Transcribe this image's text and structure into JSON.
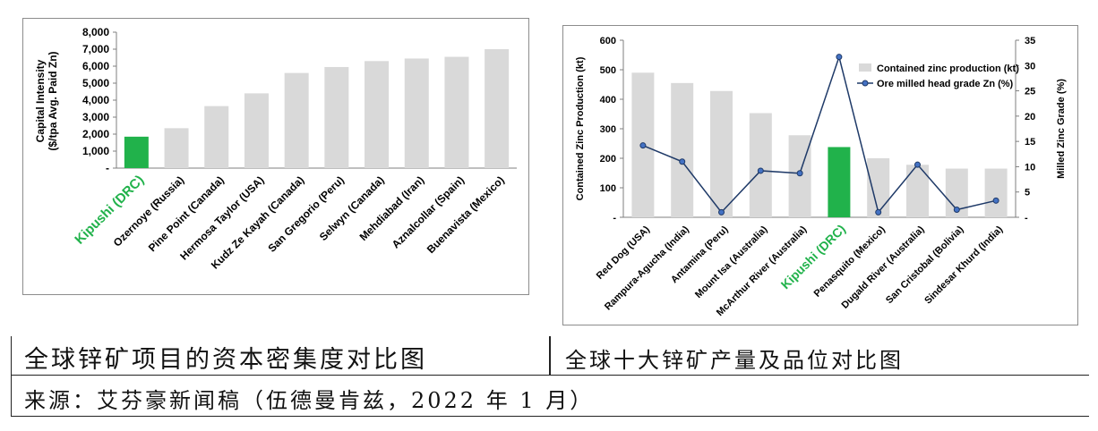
{
  "captions": {
    "left": "全球锌矿项目的资本密集度对比图",
    "right": "全球十大锌矿产量及品位对比图",
    "source": "来源：艾芬豪新闻稿（伍德曼肯兹，2022 年 1 月）"
  },
  "colors": {
    "highlight": "#21b24b",
    "bar": "#d9d9d9",
    "line": "#1f3a68",
    "marker_fill": "#4472c4",
    "highlight_label": "#21b24b"
  },
  "chart_data": [
    {
      "type": "bar",
      "title": "",
      "ylabel": "Capital Intensity\n($/tpa Avg. Paid Zn)",
      "ylim": [
        0,
        8000
      ],
      "yticks": [
        "-",
        "1,000",
        "2,000",
        "3,000",
        "4,000",
        "5,000",
        "6,000",
        "7,000",
        "8,000"
      ],
      "grid": false,
      "categories": [
        "Kipushi (DRC)",
        "Ozernoye (Russia)",
        "Pine Point  (Canada)",
        "Hermosa Taylor (USA)",
        "Kudz Ze Kayah (Canada)",
        "San Gregorio (Peru)",
        "Selwyn (Canada)",
        "Mehdiabad (Iran)",
        "Aznalcollar (Spain)",
        "Buenavista (Mexico)"
      ],
      "values": [
        1850,
        2350,
        3650,
        4400,
        5600,
        5950,
        6300,
        6450,
        6550,
        7000
      ],
      "highlight_index": 0
    },
    {
      "type": "bar",
      "title": "",
      "ylabel": "Contained Zinc Production (kt)",
      "y2label": "Milled Zinc Grade (%)",
      "ylim": [
        0,
        600
      ],
      "y2lim": [
        0,
        35
      ],
      "yticks": [
        "-",
        "100",
        "200",
        "300",
        "400",
        "500",
        "600"
      ],
      "y2ticks": [
        "-",
        "5",
        "10",
        "15",
        "20",
        "25",
        "30",
        "35"
      ],
      "grid": false,
      "legend_position": "top-right",
      "categories": [
        "Red Dog (USA)",
        "Rampura-Agucha (India)",
        "Antamina (Peru)",
        "Mount Isa (Australia)",
        "McArthur River (Australia)",
        "Kipushi (DRC)",
        "Penasquito (Mexico)",
        "Dugald River (Australia)",
        "San Cristobal (Bolivia)",
        "Sindesar Khurd (India)"
      ],
      "highlight_index": 5,
      "series": [
        {
          "name": "Contained zinc production (kt)",
          "type": "bar",
          "axis": "left",
          "values": [
            490,
            455,
            428,
            353,
            278,
            238,
            200,
            178,
            165,
            165
          ]
        },
        {
          "name": "Ore milled head grade Zn (%)",
          "type": "line",
          "axis": "right",
          "values": [
            14.2,
            11.0,
            1.0,
            9.2,
            8.7,
            31.7,
            1.0,
            10.4,
            1.5,
            3.3
          ]
        }
      ]
    }
  ]
}
